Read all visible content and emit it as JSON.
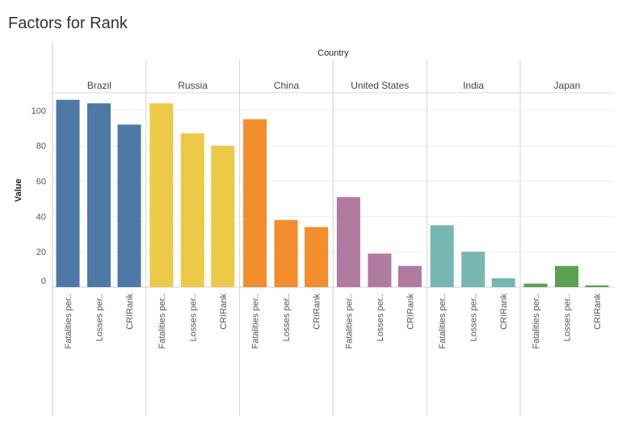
{
  "title": "Factors for Rank",
  "chart_data": {
    "type": "bar",
    "title": "Factors for Rank",
    "column_header": "Country",
    "ylabel": "Value",
    "ylim": [
      0,
      110
    ],
    "yticks": [
      0,
      20,
      40,
      60,
      80,
      100
    ],
    "categories": [
      "Fatalities per..",
      "Losses per..",
      "CRIRank"
    ],
    "panels": [
      {
        "country": "Brazil",
        "color": "#4e79a7",
        "values": [
          106,
          104,
          92
        ]
      },
      {
        "country": "Russia",
        "color": "#edc948",
        "values": [
          104,
          87,
          80
        ]
      },
      {
        "country": "China",
        "color": "#f28e2b",
        "values": [
          95,
          38,
          34
        ]
      },
      {
        "country": "United States",
        "color": "#b07aa1",
        "values": [
          51,
          19,
          12
        ]
      },
      {
        "country": "India",
        "color": "#76b7b2",
        "values": [
          35,
          20,
          5
        ]
      },
      {
        "country": "Japan",
        "color": "#59a14f",
        "values": [
          2,
          12,
          1
        ]
      }
    ],
    "grid": true
  }
}
